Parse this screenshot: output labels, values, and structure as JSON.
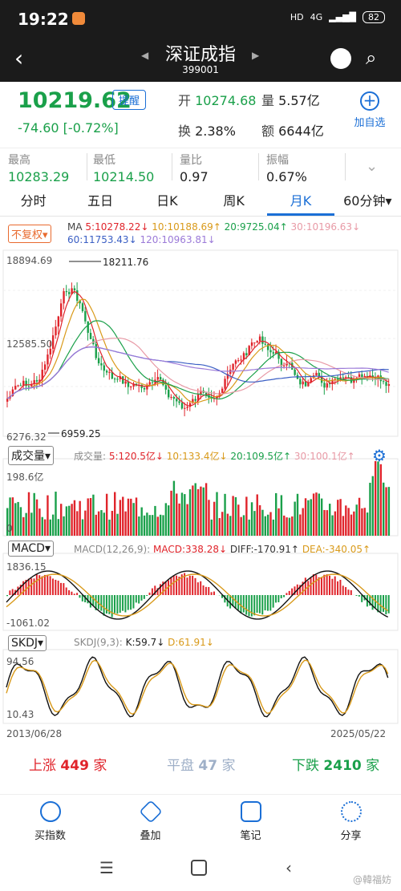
{
  "status": {
    "time": "19:22",
    "network": "4G",
    "battery": "82",
    "hd": "HD"
  },
  "header": {
    "title": "深证成指",
    "code": "399001"
  },
  "quote": {
    "price": "10219.62",
    "remind_label": "提醒",
    "change": "-74.60",
    "change_pct": "[-0.72%]",
    "open_label": "开",
    "open": "10274.68",
    "vol_label": "量",
    "vol": "5.57亿",
    "turnover_label": "换",
    "turnover": "2.38%",
    "amount_label": "额",
    "amount": "6644亿",
    "add_label": "加自选"
  },
  "stats": [
    {
      "label": "最高",
      "value": "10283.29"
    },
    {
      "label": "最低",
      "value": "10214.50"
    },
    {
      "label": "量比",
      "value": "0.97"
    },
    {
      "label": "振幅",
      "value": "0.67%"
    }
  ],
  "tabs": [
    {
      "label": "分时"
    },
    {
      "label": "五日"
    },
    {
      "label": "日K"
    },
    {
      "label": "周K"
    },
    {
      "label": "月K",
      "active": true
    },
    {
      "label": "60分钟"
    }
  ],
  "kline": {
    "adj_label": "不复权",
    "ma_title": "MA",
    "ma5": "5:10278.22↓",
    "ma10": "10:10188.69↑",
    "ma20": "20:9725.04↑",
    "ma30": "30:10196.63↓",
    "ma60": "60:11753.43↓",
    "ma120": "120:10963.81↓",
    "y_top": "18894.69",
    "y_mid": "12585.50",
    "y_bot": "6276.32",
    "high_mark": "18211.76",
    "low_mark": "6959.25",
    "colors": {
      "up": "#e0242b",
      "down": "#1aa04a",
      "ma5": "#e0242b",
      "ma10": "#d99a1a",
      "ma20": "#1aa04a",
      "ma30": "#e89aa6",
      "ma60": "#3b5fc4",
      "ma120": "#9b7ad8"
    }
  },
  "volume": {
    "label": "成交量",
    "title": "成交量:",
    "v5": "5:120.5亿↓",
    "v10": "10:133.4亿↓",
    "v20": "20:109.5亿↑",
    "v30": "30:100.1亿↑",
    "y_top": "198.6亿",
    "y_bot": "0"
  },
  "macd": {
    "label": "MACD",
    "params": "MACD(12,26,9):",
    "macd": "MACD:338.28↓",
    "diff": "DIFF:-170.91↑",
    "dea": "DEA:-340.05↑",
    "y_top": "1836.15",
    "y_bot": "-1061.02"
  },
  "skdj": {
    "label": "SKDJ",
    "params": "SKDJ(9,3):",
    "k": "K:59.7↓",
    "d": "D:61.91↓",
    "y_top": "94.56",
    "y_bot": "10.43"
  },
  "dates": {
    "start": "2013/06/28",
    "end": "2025/05/22"
  },
  "breadth": {
    "up_label": "上涨",
    "up": "449",
    "flat_label": "平盘",
    "flat": "47",
    "down_label": "下跌",
    "down": "2410",
    "unit": "家"
  },
  "bottom_nav": [
    {
      "label": "买指数"
    },
    {
      "label": "叠加"
    },
    {
      "label": "笔记"
    },
    {
      "label": "分享"
    }
  ],
  "watermark": "@韓福妨"
}
